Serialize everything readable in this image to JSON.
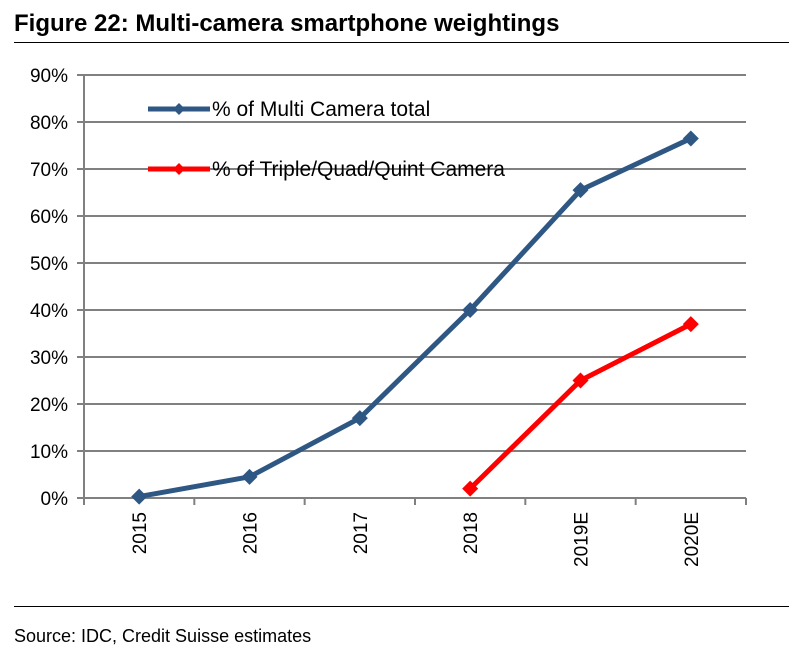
{
  "figure": {
    "title": "Figure 22: Multi-camera smartphone weightings",
    "source": "Source: IDC, Credit Suisse estimates"
  },
  "chart_data": {
    "type": "line",
    "title": "Figure 22: Multi-camera smartphone weightings",
    "xlabel": "",
    "ylabel": "",
    "categories": [
      "2015",
      "2016",
      "2017",
      "2018",
      "2019E",
      "2020E"
    ],
    "y_ticks": [
      "0%",
      "10%",
      "20%",
      "30%",
      "40%",
      "50%",
      "60%",
      "70%",
      "80%",
      "90%"
    ],
    "ylim": [
      0,
      90
    ],
    "grid": true,
    "legend_position": "top-left",
    "series": [
      {
        "name": "% of Multi Camera total",
        "color": "#2E5784",
        "values": [
          0.3,
          4.5,
          17,
          40,
          65.5,
          76.5
        ]
      },
      {
        "name": "% of Triple/Quad/Quint Camera",
        "color": "#FF0000",
        "values": [
          null,
          null,
          null,
          2,
          25,
          37
        ]
      }
    ]
  }
}
